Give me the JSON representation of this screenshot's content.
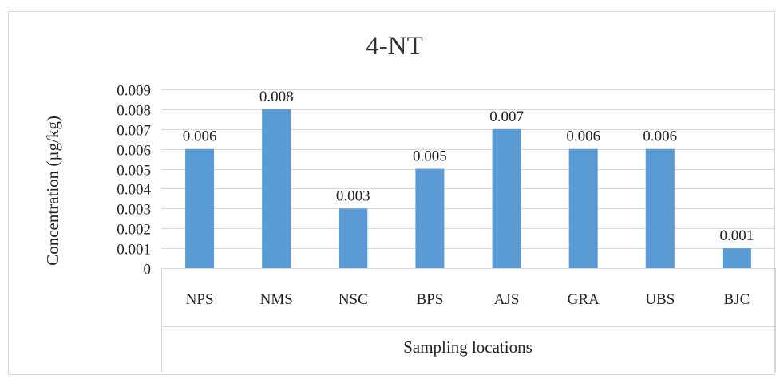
{
  "chart_data": {
    "type": "bar",
    "title": "4-NT",
    "xlabel": "Sampling locations",
    "ylabel": "Concentration (µg/kg)",
    "categories": [
      "NPS",
      "NMS",
      "NSC",
      "BPS",
      "AJS",
      "GRA",
      "UBS",
      "BJC"
    ],
    "values": [
      0.006,
      0.008,
      0.003,
      0.005,
      0.007,
      0.006,
      0.006,
      0.001
    ],
    "data_labels": [
      "0.006",
      "0.008",
      "0.003",
      "0.005",
      "0.007",
      "0.006",
      "0.006",
      "0.001"
    ],
    "ylim": [
      0,
      0.009
    ],
    "yticks": [
      0,
      0.001,
      0.002,
      0.003,
      0.004,
      0.005,
      0.006,
      0.007,
      0.008,
      0.009
    ],
    "ytick_labels": [
      "0",
      "0.001",
      "0.002",
      "0.003",
      "0.004",
      "0.005",
      "0.006",
      "0.007",
      "0.008",
      "0.009"
    ],
    "grid": true,
    "legend": "none",
    "bar_color": "#5b9bd5",
    "grid_color": "#d9d9d9",
    "frame_color": "#d9d9d9"
  }
}
